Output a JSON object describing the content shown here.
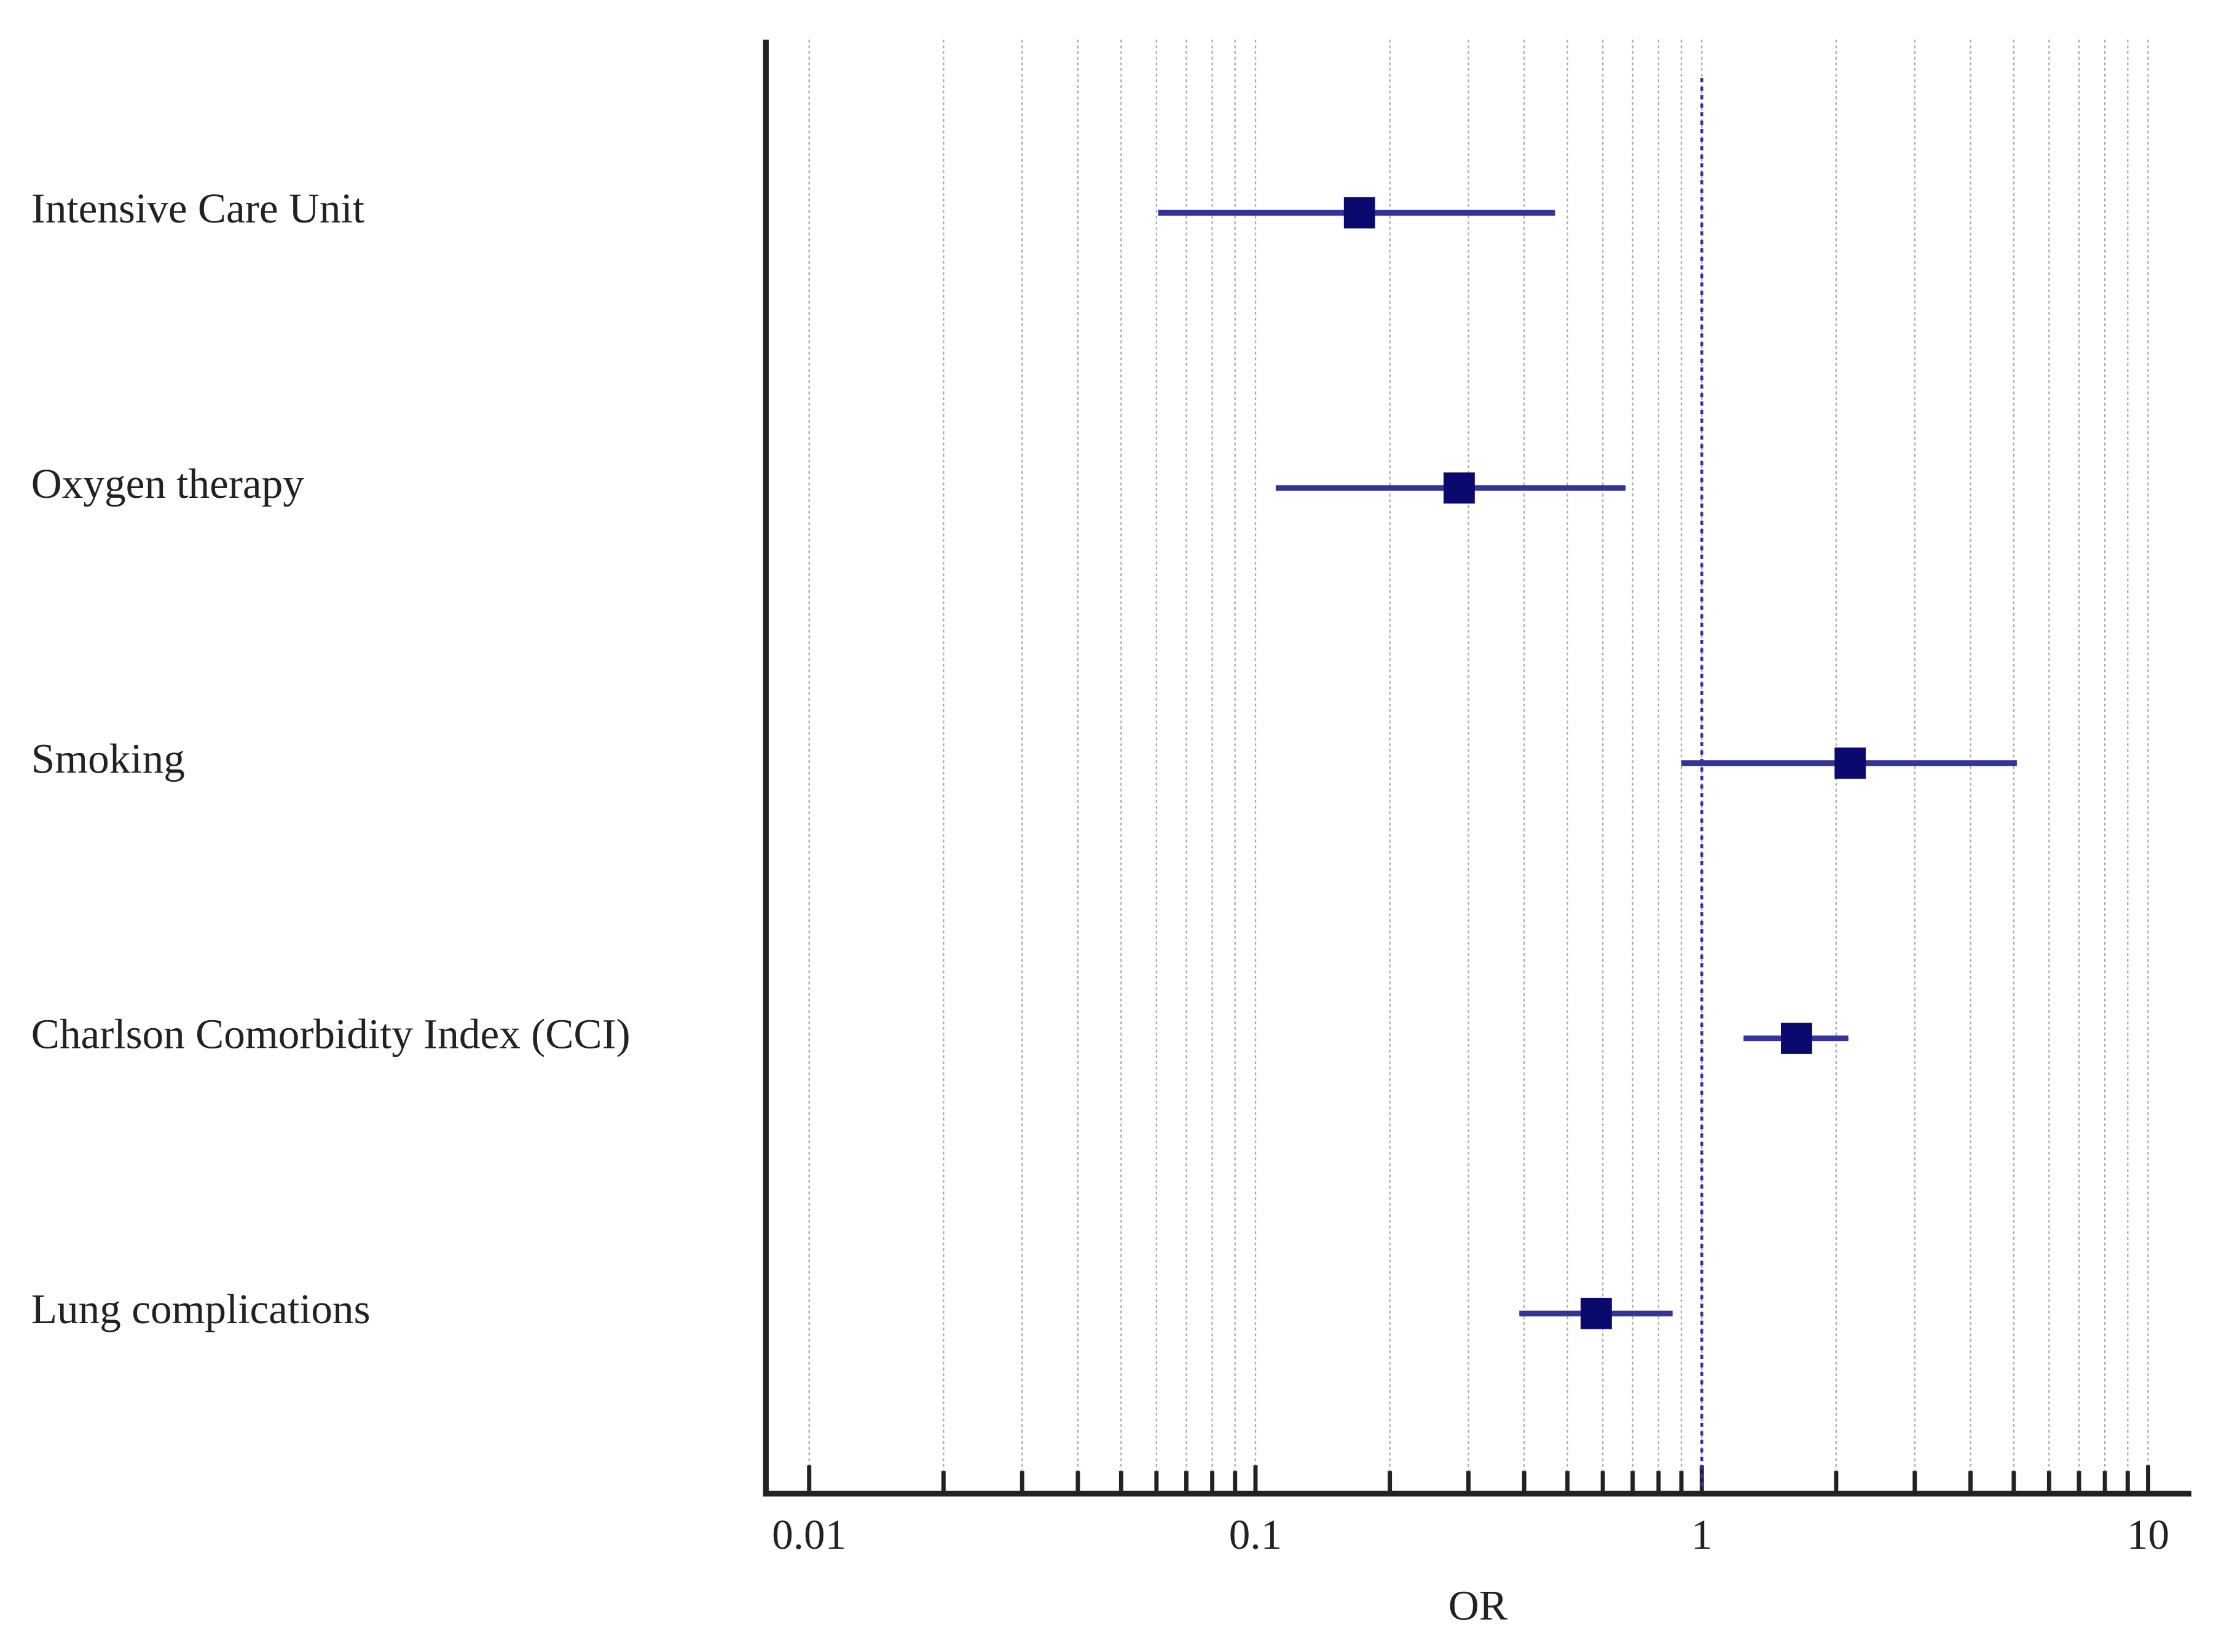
{
  "chart_data": {
    "type": "forest",
    "categories": [
      "Intensive Care Unit",
      "Oxygen therapy",
      "Smoking",
      "Charlson Comorbidity Index (CCI)",
      "Lung complications"
    ],
    "values": [
      0.171,
      0.286,
      2.15,
      1.63,
      0.58
    ],
    "lower": [
      0.0605,
      0.111,
      0.9,
      1.24,
      0.39
    ],
    "upper": [
      0.469,
      0.675,
      5.08,
      2.13,
      0.86
    ],
    "color": "#0a0a6e",
    "ci_color": "#333399",
    "x_label": "OR",
    "xscale": "log",
    "xlim": [
      0.008,
      12.5
    ],
    "xticks": [
      0.01,
      0.1,
      1,
      10
    ],
    "xminorticks": [
      0.02,
      0.03,
      0.04,
      0.05,
      0.06,
      0.07,
      0.08,
      0.09,
      0.2,
      0.3,
      0.4,
      0.5,
      0.6,
      0.7,
      0.8,
      0.9,
      2,
      3,
      4,
      5,
      6,
      7,
      8,
      9
    ],
    "ref_line": 1,
    "grid": true
  }
}
